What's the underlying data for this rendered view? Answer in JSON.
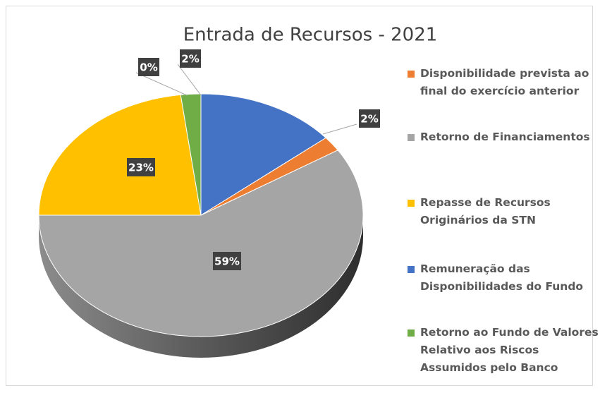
{
  "chart_data": {
    "type": "pie",
    "title": "Entrada de Recursos - 2021",
    "categories": [
      "Disponibilidade prevista ao final do exercício anterior",
      "Retorno de Financiamentos",
      "Repasse de Recursos Originários da STN",
      "Remuneração das Disponibilidades do Fundo",
      "Retorno ao Fundo de Valores Relativo aos Riscos Assumidos pelo Banco",
      null
    ],
    "values": [
      2,
      59,
      23,
      14,
      2,
      0
    ],
    "value_labels": [
      "2%",
      "59%",
      "23%",
      null,
      "2%",
      "0%"
    ],
    "colors": [
      "#ed7d31",
      "#a5a5a5",
      "#ffc000",
      "#4472c4",
      "#70ad47",
      "#5b9bd5"
    ],
    "legend": "right"
  }
}
